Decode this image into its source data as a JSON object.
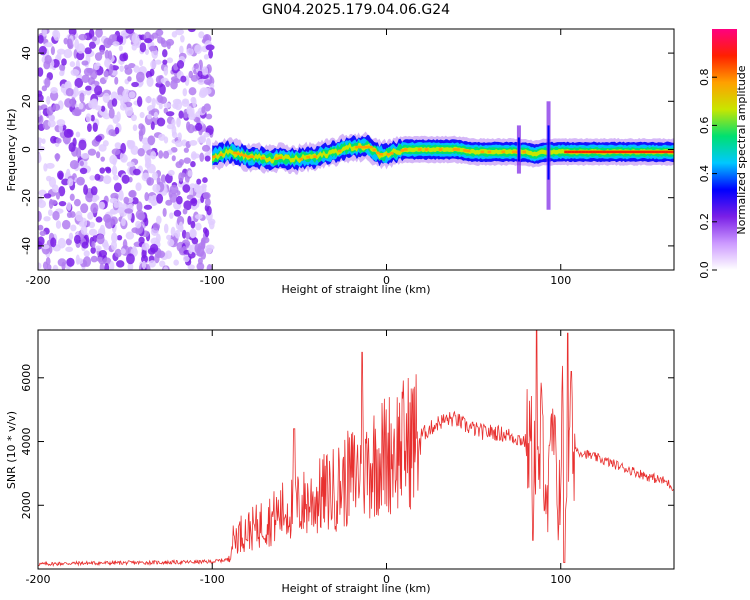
{
  "title": "GN04.2025.179.04.06.G24",
  "chart_data": [
    {
      "type": "heatmap",
      "title": "GN04.2025.179.04.06.G24",
      "xlabel": "Height of straight line (km)",
      "ylabel": "Frequency (Hz)",
      "xlim": [
        -200,
        165
      ],
      "ylim": [
        -50,
        50
      ],
      "xticks": [
        -200,
        -100,
        0,
        100
      ],
      "yticks": [
        -40,
        -20,
        0,
        20,
        40
      ],
      "colorbar": {
        "label": "Normalized spectral amplitude",
        "range": [
          0.0,
          1.0
        ],
        "ticks": [
          "0.0",
          "0.2",
          "0.4",
          "0.6",
          "0.8"
        ],
        "colormap": [
          "#ffffff",
          "#cc99ff",
          "#7a1fe6",
          "#0000ff",
          "#00c8ff",
          "#00e070",
          "#c8e600",
          "#ffa000",
          "#ff2000",
          "#ff0080"
        ]
      },
      "noise_region_x": [
        -200,
        -100
      ],
      "ridge_x": [
        -100,
        -95,
        -90,
        -85,
        -80,
        -75,
        -70,
        -65,
        -60,
        -55,
        -50,
        -45,
        -40,
        -35,
        -30,
        -25,
        -20,
        -15,
        -10,
        -5,
        0,
        5,
        10,
        20,
        30,
        40,
        50,
        60,
        70,
        75,
        80,
        85,
        90,
        95,
        100,
        110,
        120,
        130,
        140,
        150,
        160,
        165
      ],
      "ridge_freq": [
        -3,
        -2,
        -1,
        -2,
        -3,
        -3,
        -4,
        -4,
        -3,
        -4,
        -4,
        -3,
        -3,
        -2,
        -1,
        0,
        1,
        1,
        1,
        -2,
        -2,
        -1,
        0,
        0,
        0,
        0,
        -1,
        -1,
        -1,
        -1,
        -1,
        -2,
        -1,
        -1,
        -1,
        -1,
        -1,
        -1,
        -1,
        -1,
        -1,
        -1
      ]
    },
    {
      "type": "line",
      "xlabel": "Height of straight line (km)",
      "ylabel": "SNR (10 * v/v)",
      "xlim": [
        -200,
        165
      ],
      "ylim": [
        0,
        7500
      ],
      "xticks": [
        -200,
        -100,
        0,
        100
      ],
      "yticks": [
        2000,
        4000,
        6000
      ],
      "series": [
        {
          "color": "#e8302f",
          "x": [
            -200,
            -180,
            -160,
            -140,
            -120,
            -100,
            -91,
            -88,
            -85,
            -80,
            -75,
            -70,
            -65,
            -60,
            -55,
            -50,
            -45,
            -40,
            -35,
            -30,
            -25,
            -20,
            -15,
            -10,
            -5,
            0,
            5,
            10,
            15,
            20,
            25,
            30,
            35,
            40,
            45,
            50,
            55,
            60,
            65,
            70,
            75,
            80,
            83,
            85,
            87,
            89,
            91,
            93,
            95,
            97,
            99,
            101,
            103,
            105,
            110,
            120,
            130,
            140,
            150,
            160,
            165
          ],
          "y": [
            150,
            180,
            190,
            200,
            210,
            230,
            300,
            900,
            1100,
            1200,
            1300,
            1500,
            1600,
            1800,
            1900,
            2000,
            2100,
            2200,
            2400,
            2500,
            2700,
            2900,
            3100,
            3300,
            3500,
            3600,
            3800,
            3900,
            4100,
            4200,
            4400,
            4600,
            4700,
            4700,
            4500,
            4400,
            4300,
            4300,
            4250,
            4200,
            4100,
            4000,
            3800,
            3500,
            2500,
            4500,
            3200,
            2000,
            4400,
            3000,
            2200,
            4800,
            2800,
            4000,
            3700,
            3500,
            3300,
            3100,
            2900,
            2750,
            2550
          ],
          "peaks": [
            {
              "x": -53,
              "y": 4400
            },
            {
              "x": -14,
              "y": 6800
            },
            {
              "x": 86,
              "y": 7500
            },
            {
              "x": 104,
              "y": 7400
            },
            {
              "x": 106,
              "y": 6200
            },
            {
              "x": 84,
              "y": 900
            },
            {
              "x": 102,
              "y": 200
            }
          ]
        }
      ]
    }
  ]
}
